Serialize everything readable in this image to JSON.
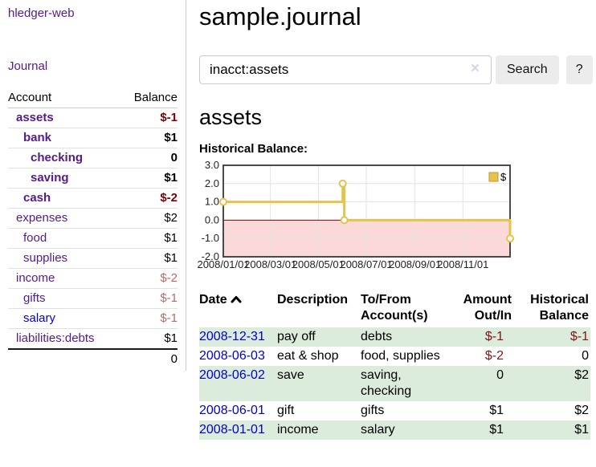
{
  "sidebar": {
    "app_title": "hledger-web",
    "journal_link": "Journal",
    "accounts": {
      "headers": {
        "account": "Account",
        "balance": "Balance"
      },
      "rows": [
        {
          "name": "assets",
          "balance": "$-1"
        },
        {
          "name": "bank",
          "balance": "$1"
        },
        {
          "name": "checking",
          "balance": "0"
        },
        {
          "name": "saving",
          "balance": "$1"
        },
        {
          "name": "cash",
          "balance": "$-2"
        },
        {
          "name": "expenses",
          "balance": "$2"
        },
        {
          "name": "food",
          "balance": "$1"
        },
        {
          "name": "supplies",
          "balance": "$1"
        },
        {
          "name": "income",
          "balance": "$-2"
        },
        {
          "name": "gifts",
          "balance": "$-1"
        },
        {
          "name": "salary",
          "balance": "$-1"
        },
        {
          "name": "liabilities:debts",
          "balance": "$1"
        }
      ],
      "total": "0"
    }
  },
  "header": {
    "title": "sample.journal"
  },
  "search": {
    "value": "inacct:assets",
    "clear_icon": "×",
    "button_label": "Search",
    "help_label": "?"
  },
  "account_page": {
    "title": "assets",
    "chart_label": "Historical Balance:"
  },
  "chart_data": {
    "type": "line",
    "step": true,
    "title": "Historical Balance",
    "series": [
      {
        "name": "$",
        "points": [
          [
            "2008-01-01",
            1
          ],
          [
            "2008-06-01",
            2
          ],
          [
            "2008-06-03",
            0
          ],
          [
            "2008-12-31",
            -1
          ]
        ]
      }
    ],
    "x_range": [
      "2008-01-01",
      "2008-12-31"
    ],
    "x_ticks": [
      "2008/01/01",
      "2008/03/01",
      "2008/05/01",
      "2008/07/01",
      "2008/09/01",
      "2008/11/01"
    ],
    "y_ticks": [
      3.0,
      2.0,
      1.0,
      0.0,
      -1.0,
      -2.0
    ],
    "ylim": [
      -2,
      3
    ],
    "grid": true,
    "negative_region_highlighted": true,
    "legend": {
      "label": "$",
      "position": "top-right"
    },
    "colors": {
      "line": "#e6c34c",
      "marker_fill": "#ffffff",
      "negative_fill": "#fbd9d9",
      "zero_line": "#7f0000",
      "grid": "#e3e3e3",
      "border": "#4a4a4a",
      "legend_border": "#b89a2e",
      "tick_text": "#222222"
    }
  },
  "register": {
    "headers": {
      "date": "Date",
      "description": "Description",
      "accounts": "To/From Account(s)",
      "amount": "Amount Out/In",
      "balance": "Historical Balance"
    },
    "rows": [
      {
        "date": "2008-12-31",
        "description": "pay off",
        "accounts": "debts",
        "amount": "$-1",
        "balance": "$-1"
      },
      {
        "date": "2008-06-03",
        "description": "eat & shop",
        "accounts": "food, supplies",
        "amount": "$-2",
        "balance": "0"
      },
      {
        "date": "2008-06-02",
        "description": "save",
        "accounts": "saving, checking",
        "amount": "0",
        "balance": "$2"
      },
      {
        "date": "2008-06-01",
        "description": "gift",
        "accounts": "gifts",
        "amount": "$1",
        "balance": "$2"
      },
      {
        "date": "2008-01-01",
        "description": "income",
        "accounts": "salary",
        "amount": "$1",
        "balance": "$1"
      }
    ]
  }
}
